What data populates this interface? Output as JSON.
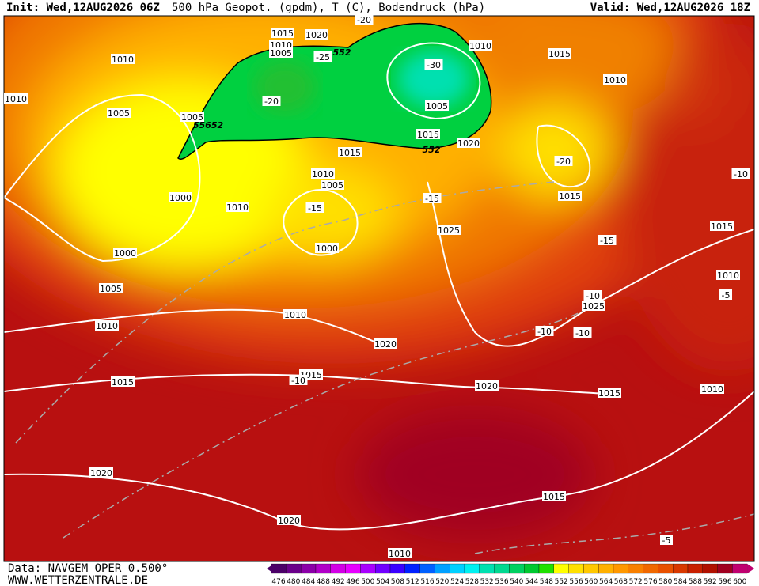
{
  "header": {
    "init": "Init: Wed,12AUG2026 06Z",
    "title": "500 hPa Geopot. (gpdm), T (C), Bodendruck (hPa)",
    "valid": "Valid: Wed,12AUG2026 18Z"
  },
  "footer": {
    "data": "Data: NAVGEM OPER 0.500°",
    "site": "WWW.WETTERZENTRALE.DE"
  },
  "map_labels": {
    "isobars": [
      "1010",
      "1010",
      "1005",
      "1005",
      "1000",
      "1010",
      "1000",
      "1005",
      "1010",
      "1015",
      "1020",
      "1020",
      "1010",
      "1015",
      "1020",
      "1015",
      "1010",
      "1025",
      "1010",
      "1015",
      "1015",
      "1010",
      "1015",
      "1010",
      "1015",
      "1020",
      "1010",
      "1005",
      "1005",
      "1015",
      "1020",
      "1015",
      "1010",
      "1005",
      "1000",
      "1010",
      "1020",
      "1015",
      "1025"
    ],
    "temperatures": [
      "-20",
      "-25",
      "-30",
      "-20",
      "-15",
      "-15",
      "-20",
      "-10",
      "-15",
      "-10",
      "-10",
      "-10",
      "-5",
      "-10",
      "-5"
    ],
    "contours": [
      "552",
      "552",
      "55652"
    ]
  },
  "legend": {
    "values": [
      476,
      480,
      484,
      488,
      492,
      496,
      500,
      504,
      508,
      512,
      516,
      520,
      524,
      528,
      532,
      536,
      540,
      544,
      548,
      552,
      556,
      560,
      564,
      568,
      572,
      576,
      580,
      584,
      588,
      592,
      596,
      600
    ],
    "colors": [
      "#4b0068",
      "#6a008a",
      "#8b00a8",
      "#b000c8",
      "#d200e6",
      "#e600ff",
      "#a800ff",
      "#7000ff",
      "#3a00ff",
      "#0020ff",
      "#0060ff",
      "#00a0ff",
      "#00d0ff",
      "#00f0f0",
      "#00e0b0",
      "#00d890",
      "#00d060",
      "#00c830",
      "#20e000",
      "#ffff00",
      "#ffe000",
      "#ffc800",
      "#ffb000",
      "#ff9800",
      "#f88000",
      "#f06800",
      "#e85000",
      "#d83800",
      "#c82000",
      "#b01000",
      "#a00020",
      "#c00070"
    ]
  }
}
